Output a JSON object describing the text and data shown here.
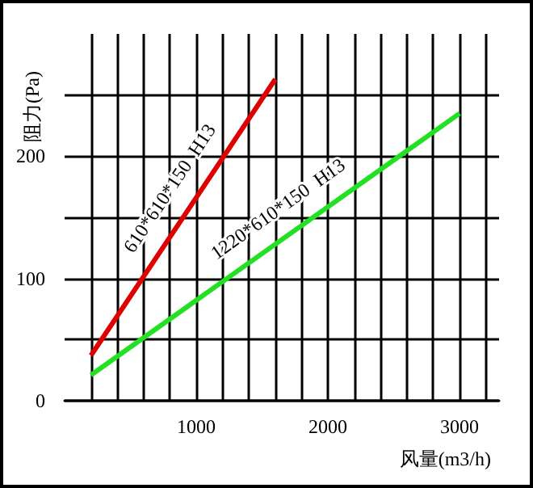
{
  "chart_data": {
    "type": "line",
    "xlabel": "风量(m3/h)",
    "ylabel": "阻力(Pa)",
    "xlim": [
      0,
      3300
    ],
    "ylim": [
      0,
      300
    ],
    "xticks": [
      {
        "value": 200,
        "label": null
      },
      {
        "value": 400,
        "label": null
      },
      {
        "value": 600,
        "label": null
      },
      {
        "value": 800,
        "label": null
      },
      1000,
      {
        "value": 1200,
        "label": null
      },
      {
        "value": 1400,
        "label": null
      },
      {
        "value": 1600,
        "label": null
      },
      {
        "value": 1800,
        "label": null
      },
      2000,
      {
        "value": 2200,
        "label": null
      },
      {
        "value": 2400,
        "label": null
      },
      {
        "value": 2600,
        "label": null
      },
      {
        "value": 2800,
        "label": null
      },
      3000,
      {
        "value": 3200,
        "label": null
      }
    ],
    "yticks": [
      0,
      {
        "value": 50,
        "label": null
      },
      100,
      {
        "value": 150,
        "label": null
      },
      200,
      {
        "value": 250,
        "label": null
      }
    ],
    "grid": true,
    "legend": false,
    "series": [
      {
        "name": "610*610*150  H13",
        "color": "#e00000",
        "x": [
          200,
          1600
        ],
        "values": [
          37,
          263
        ]
      },
      {
        "name": "1220*610*150  H13",
        "color": "#22e022",
        "x": [
          200,
          3000
        ],
        "values": [
          21,
          235
        ]
      }
    ]
  }
}
